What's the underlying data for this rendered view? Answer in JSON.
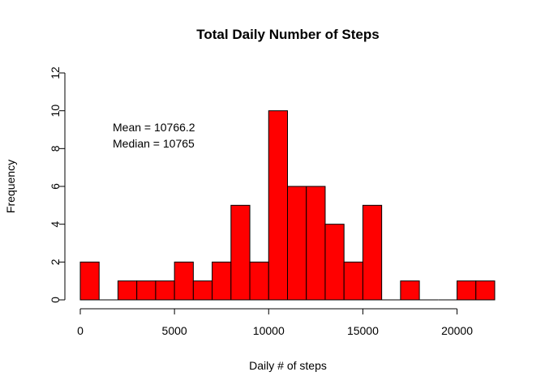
{
  "chart_data": {
    "type": "bar",
    "title": "Total Daily Number of Steps",
    "xlabel": "Daily # of steps",
    "ylabel": "Frequency",
    "bin_width": 1000,
    "bins_start": [
      0,
      1000,
      2000,
      3000,
      4000,
      5000,
      6000,
      7000,
      8000,
      9000,
      10000,
      11000,
      12000,
      13000,
      14000,
      15000,
      16000,
      17000,
      18000,
      19000,
      20000,
      21000
    ],
    "values": [
      2,
      0,
      1,
      1,
      1,
      2,
      1,
      2,
      5,
      2,
      10,
      6,
      6,
      4,
      2,
      5,
      0,
      1,
      0,
      0,
      1,
      1
    ],
    "xlim": [
      0,
      22000
    ],
    "ylim": [
      0,
      12
    ],
    "x_ticks": [
      0,
      5000,
      10000,
      15000,
      20000
    ],
    "y_ticks": [
      0,
      2,
      4,
      6,
      8,
      10,
      12
    ],
    "bar_color": "#ff0000",
    "grid": false,
    "annotations": [
      "Mean = 10766.2",
      "Median = 10765"
    ]
  }
}
